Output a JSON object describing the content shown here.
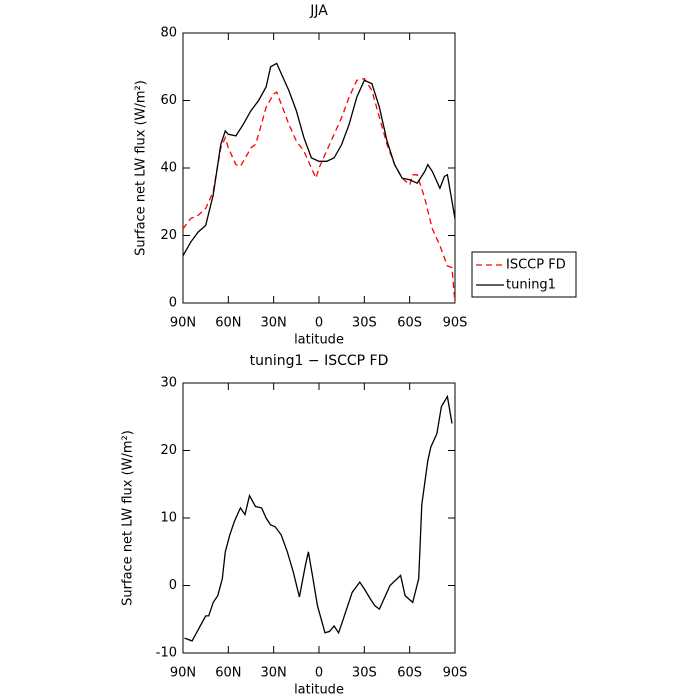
{
  "chart_data": [
    {
      "type": "line",
      "title": "JJA",
      "xlabel": "latitude",
      "ylabel": "Surface net LW flux (W/m²)",
      "xlim": [
        90,
        -90
      ],
      "xticks": [
        {
          "value": 90,
          "label": "90N"
        },
        {
          "value": 60,
          "label": "60N"
        },
        {
          "value": 30,
          "label": "30N"
        },
        {
          "value": 0,
          "label": "0"
        },
        {
          "value": -30,
          "label": "30S"
        },
        {
          "value": -60,
          "label": "60S"
        },
        {
          "value": -90,
          "label": "90S"
        }
      ],
      "ylim": [
        0,
        80
      ],
      "yticks": [
        0,
        20,
        40,
        60,
        80
      ],
      "legend": "right-outside",
      "series": [
        {
          "name": "ISCCP FD",
          "color": "#ff0000",
          "dash": true,
          "x": [
            90,
            85,
            80,
            75,
            70,
            65,
            62,
            60,
            55,
            52,
            50,
            45,
            42,
            40,
            35,
            30,
            28,
            25,
            20,
            15,
            10,
            5,
            2,
            0,
            -5,
            -10,
            -15,
            -20,
            -25,
            -30,
            -35,
            -40,
            -45,
            -50,
            -55,
            -60,
            -62,
            -65,
            -70,
            -75,
            -80,
            -85,
            -88,
            -90
          ],
          "values": [
            22,
            25,
            26,
            28,
            33,
            46,
            49,
            46,
            41,
            40.5,
            42,
            46,
            47,
            50,
            58,
            62,
            62.5,
            59,
            53,
            48,
            45,
            40,
            37,
            40,
            45,
            50,
            55,
            61,
            66,
            66.5,
            63,
            55,
            47,
            41,
            37,
            35,
            38,
            38,
            31,
            22,
            17,
            11,
            10.5,
            0
          ]
        },
        {
          "name": "tuning1",
          "color": "#000000",
          "dash": false,
          "x": [
            90,
            85,
            80,
            75,
            70,
            65,
            62,
            60,
            55,
            50,
            45,
            40,
            35,
            32,
            30,
            28,
            25,
            20,
            15,
            10,
            5,
            0,
            -5,
            -10,
            -15,
            -20,
            -25,
            -30,
            -35,
            -40,
            -45,
            -50,
            -55,
            -60,
            -65,
            -70,
            -72,
            -75,
            -80,
            -83,
            -85,
            -90
          ],
          "values": [
            14,
            18,
            21,
            23,
            32,
            47,
            51,
            50,
            49.5,
            53,
            57,
            60,
            64,
            70,
            70.5,
            71,
            68,
            63,
            57,
            49,
            43,
            42,
            42,
            43,
            47,
            53,
            61,
            66,
            65,
            58,
            48,
            41,
            37,
            36.5,
            35.5,
            39,
            41,
            39,
            34,
            37.5,
            38,
            25
          ]
        }
      ]
    },
    {
      "type": "line",
      "title": "tuning1 − ISCCP FD",
      "xlabel": "latitude",
      "ylabel": "Surface net LW flux (W/m²)",
      "xlim": [
        90,
        -90
      ],
      "xticks": [
        {
          "value": 90,
          "label": "90N"
        },
        {
          "value": 60,
          "label": "60N"
        },
        {
          "value": 30,
          "label": "30N"
        },
        {
          "value": 0,
          "label": "0"
        },
        {
          "value": -30,
          "label": "30S"
        },
        {
          "value": -60,
          "label": "60S"
        },
        {
          "value": -90,
          "label": "90S"
        }
      ],
      "ylim": [
        -10,
        30
      ],
      "yticks": [
        -10,
        0,
        10,
        20,
        30
      ],
      "series": [
        {
          "color": "#000000",
          "dash": false,
          "x": [
            89,
            84,
            75,
            73,
            70,
            67,
            64,
            62,
            59,
            56,
            52,
            49,
            46,
            42,
            38,
            35,
            32,
            29,
            25,
            21,
            17,
            13,
            9,
            7,
            4,
            1,
            -4,
            -7,
            -10,
            -13,
            -16,
            -19,
            -22,
            -27,
            -30,
            -34,
            -37,
            -40,
            -47,
            -54,
            -57,
            -62,
            -66,
            -68,
            -72,
            -74,
            -78,
            -81,
            -85,
            -88
          ],
          "values": [
            -7.8,
            -8.2,
            -4.5,
            -4.5,
            -2.5,
            -1.5,
            1,
            5,
            7.5,
            9.5,
            11.5,
            10.5,
            13.3,
            11.7,
            11.5,
            10,
            9,
            8.7,
            7.5,
            5,
            2,
            -1.7,
            3,
            5,
            1,
            -3,
            -7,
            -6.8,
            -6,
            -7,
            -5,
            -3,
            -1,
            0.5,
            -0.5,
            -2,
            -3,
            -3.5,
            0,
            1.5,
            -1.5,
            -2.5,
            1,
            12,
            18.5,
            20.5,
            22.5,
            26.5,
            28,
            24
          ]
        }
      ]
    }
  ]
}
